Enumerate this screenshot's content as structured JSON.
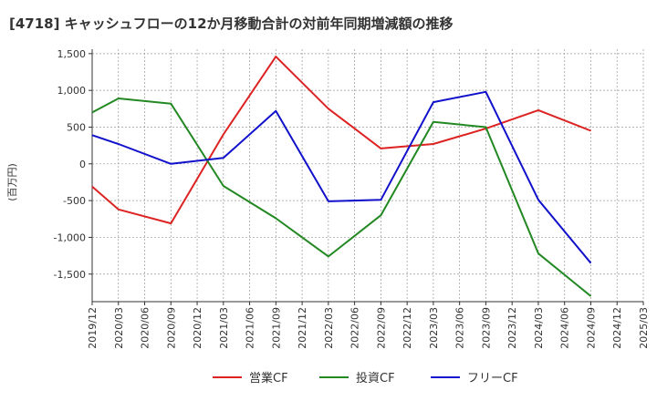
{
  "chart_data": {
    "type": "line",
    "title": "[4718]  キャッシュフローの12か月移動合計の対前年同期増減額の推移",
    "ylabel": "(百万円)",
    "xlabel": "",
    "ylim": [
      -1875,
      1560
    ],
    "yticks": [
      1500,
      1000,
      500,
      0,
      -500,
      -1000,
      -1500
    ],
    "ytick_labels": [
      "1,500",
      "1,000",
      "500",
      "0",
      "-500",
      "-1,000",
      "-1,500"
    ],
    "categories": [
      "2019/12",
      "2020/03",
      "2020/06",
      "2020/09",
      "2020/12",
      "2021/03",
      "2021/06",
      "2021/09",
      "2021/12",
      "2022/03",
      "2022/06",
      "2022/09",
      "2022/12",
      "2023/03",
      "2023/06",
      "2023/09",
      "2023/12",
      "2024/03",
      "2024/06",
      "2024/09",
      "2024/12",
      "2025/03"
    ],
    "grid": true,
    "legend_position": "bottom",
    "series": [
      {
        "name": "営業CF",
        "color": "#dd2222",
        "values": [
          -310,
          -620,
          null,
          -810,
          null,
          400,
          null,
          1460,
          null,
          750,
          null,
          210,
          null,
          270,
          null,
          480,
          null,
          730,
          null,
          450,
          null,
          null
        ]
      },
      {
        "name": "投資CF",
        "color": "#228822",
        "values": [
          700,
          890,
          null,
          820,
          null,
          -300,
          null,
          -740,
          null,
          -1260,
          null,
          -700,
          null,
          570,
          null,
          500,
          null,
          -1220,
          null,
          -1800,
          null,
          null
        ]
      },
      {
        "name": "フリーCF",
        "color": "#1111cc",
        "values": [
          390,
          270,
          null,
          0,
          null,
          80,
          null,
          720,
          null,
          -510,
          null,
          -490,
          null,
          840,
          null,
          980,
          null,
          -490,
          null,
          -1350,
          null,
          null
        ]
      }
    ]
  }
}
